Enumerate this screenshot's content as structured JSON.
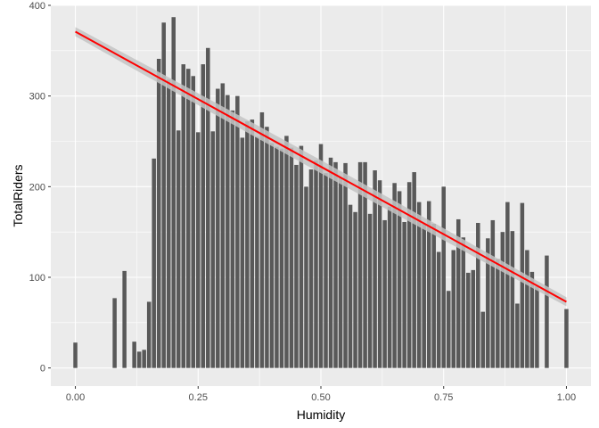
{
  "chart_data": {
    "type": "bar",
    "xlabel": "Humidity",
    "ylabel": "TotalRiders",
    "xlim": [
      -0.05,
      1.05
    ],
    "ylim": [
      -20,
      400
    ],
    "x_ticks": [
      0.0,
      0.25,
      0.5,
      0.75,
      1.0
    ],
    "x_tick_labels": [
      "0.00",
      "0.25",
      "0.50",
      "0.75",
      "1.00"
    ],
    "y_ticks": [
      0,
      100,
      200,
      300,
      400
    ],
    "y_tick_labels": [
      "0",
      "100",
      "200",
      "300",
      "400"
    ],
    "bar_width": 0.0082,
    "bar_color": "#595959",
    "panel_background": "#ebebeb",
    "grid": true,
    "grid_color": "#ffffff",
    "x": [
      0.0,
      0.08,
      0.1,
      0.12,
      0.13,
      0.14,
      0.15,
      0.16,
      0.17,
      0.18,
      0.19,
      0.2,
      0.21,
      0.22,
      0.23,
      0.24,
      0.25,
      0.26,
      0.27,
      0.28,
      0.29,
      0.3,
      0.31,
      0.32,
      0.33,
      0.34,
      0.35,
      0.36,
      0.37,
      0.38,
      0.39,
      0.4,
      0.41,
      0.42,
      0.43,
      0.44,
      0.45,
      0.46,
      0.47,
      0.48,
      0.49,
      0.5,
      0.51,
      0.52,
      0.53,
      0.54,
      0.55,
      0.56,
      0.57,
      0.58,
      0.59,
      0.6,
      0.61,
      0.62,
      0.63,
      0.64,
      0.65,
      0.66,
      0.67,
      0.68,
      0.69,
      0.7,
      0.71,
      0.72,
      0.73,
      0.74,
      0.75,
      0.76,
      0.77,
      0.78,
      0.79,
      0.8,
      0.81,
      0.82,
      0.83,
      0.84,
      0.85,
      0.86,
      0.87,
      0.88,
      0.89,
      0.9,
      0.91,
      0.92,
      0.93,
      0.94,
      0.96,
      1.0
    ],
    "values": [
      28,
      77,
      107,
      29,
      18,
      20,
      73,
      231,
      341,
      381,
      318,
      387,
      262,
      335,
      330,
      322,
      260,
      335,
      353,
      261,
      308,
      314,
      301,
      284,
      300,
      254,
      272,
      274,
      255,
      282,
      266,
      248,
      244,
      242,
      256,
      243,
      224,
      245,
      200,
      219,
      229,
      247,
      215,
      232,
      227,
      210,
      226,
      180,
      172,
      227,
      227,
      170,
      218,
      207,
      163,
      178,
      204,
      195,
      161,
      205,
      216,
      183,
      159,
      184,
      159,
      128,
      200,
      85,
      130,
      164,
      144,
      105,
      108,
      160,
      62,
      143,
      163,
      120,
      150,
      183,
      151,
      71,
      182,
      130,
      106,
      90,
      124,
      65
    ],
    "trend": {
      "x": [
        0.0,
        1.0
      ],
      "y": [
        371,
        73
      ],
      "color": "#ff0000",
      "band_color": "#c4c4c4",
      "band_half_width": [
        9,
        5
      ]
    }
  },
  "axes": {
    "xlabel": "Humidity",
    "ylabel": "TotalRiders"
  }
}
